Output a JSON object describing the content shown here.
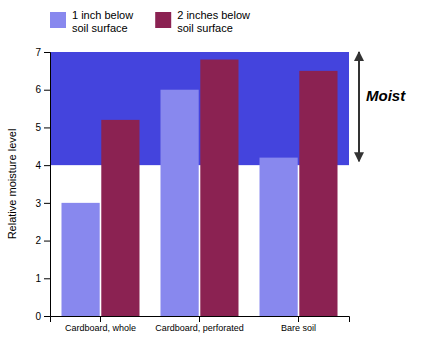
{
  "chart_data": {
    "type": "bar",
    "categories": [
      "Cardboard, whole",
      "Cardboard, perforated",
      "Bare soil"
    ],
    "series": [
      {
        "name": "1 inch below\nsoil surface",
        "color": "#8888ee",
        "values": [
          3.0,
          6.0,
          4.2
        ]
      },
      {
        "name": "2 inches below\nsoil surface",
        "color": "#8b2252",
        "values": [
          5.2,
          6.8,
          6.5
        ]
      }
    ],
    "ylabel": "Relative moisture level",
    "ylim": [
      0,
      7
    ],
    "yticks": [
      0,
      1,
      2,
      3,
      4,
      5,
      6,
      7
    ],
    "band": {
      "ylim": [
        4.0,
        7.0
      ],
      "color": "#4444dd"
    },
    "annotations": [
      {
        "text": "Moist",
        "y": 5.8,
        "arrow": [
          4.1,
          7.0
        ]
      }
    ]
  }
}
